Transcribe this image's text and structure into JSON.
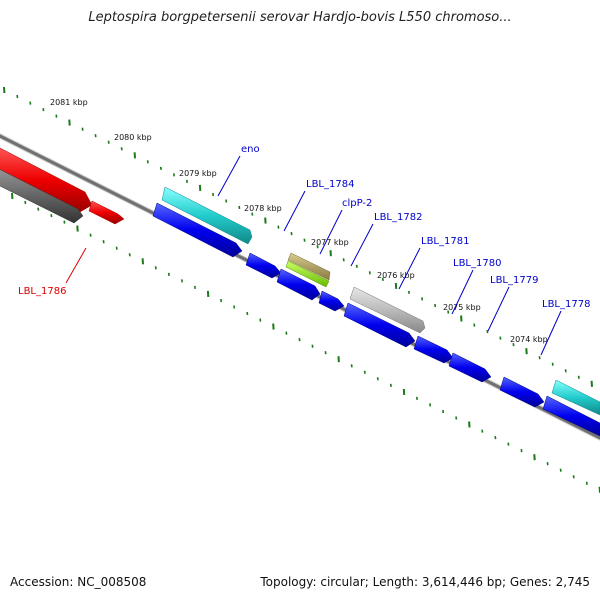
{
  "title": "Leptospira borgpetersenii serovar Hardjo-bovis L550 chromoso...",
  "footer": {
    "accession": "Accession: NC_008508",
    "summary": "Topology: circular; Length: 3,614,446 bp; Genes: 2,745"
  },
  "ticks": [
    {
      "label": "2081 kbp"
    },
    {
      "label": "2080 kbp"
    },
    {
      "label": "2079 kbp"
    },
    {
      "label": "2078 kbp"
    },
    {
      "label": "2077 kbp"
    },
    {
      "label": "2076 kbp"
    },
    {
      "label": "2075 kbp"
    },
    {
      "label": "2074 kbp"
    }
  ],
  "genes": [
    {
      "label": "eno",
      "color": "#0000cc"
    },
    {
      "label": "LBL_1784",
      "color": "#0000cc"
    },
    {
      "label": "clpP-2",
      "color": "#0000cc"
    },
    {
      "label": "LBL_1782",
      "color": "#0000cc"
    },
    {
      "label": "LBL_1781",
      "color": "#0000cc"
    },
    {
      "label": "LBL_1780",
      "color": "#0000cc"
    },
    {
      "label": "LBL_1779",
      "color": "#0000cc"
    },
    {
      "label": "LBL_1778",
      "color": "#0000cc"
    },
    {
      "label": "LBL_1786",
      "color": "#dd0000"
    }
  ],
  "colors": {
    "backbone": "#808080",
    "tick": "#1a7a1a",
    "cds_forward": "#0000ee",
    "cds_red": "#ee0000",
    "cds_grey": "#666666",
    "cds_cyan": "#22cccc",
    "cds_olive": "#b0a060",
    "cds_lime": "#99ee22",
    "cds_lightgrey": "#bbbbbb"
  }
}
